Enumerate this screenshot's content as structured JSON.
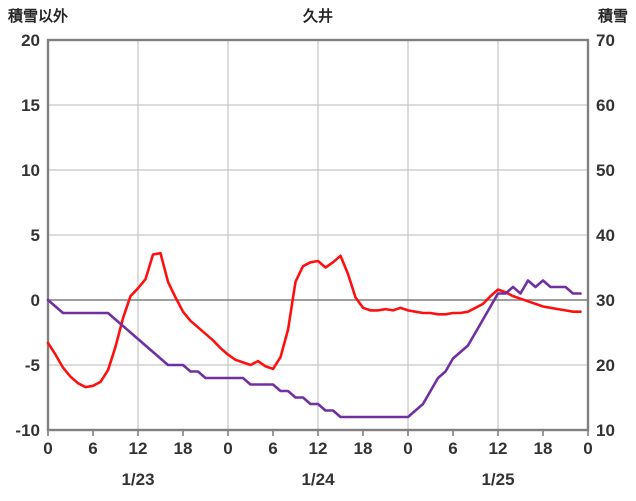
{
  "header": {
    "left_axis_title": "積雪以外",
    "chart_title": "久井",
    "right_axis_title": "積雪"
  },
  "chart_data": {
    "type": "line",
    "title": "久井",
    "legend": "none",
    "grid": true,
    "left_axis": {
      "label": "積雪以外",
      "min": -10,
      "max": 20,
      "tick_step": 5,
      "ticks": [
        20,
        15,
        10,
        5,
        0,
        -5,
        -10
      ]
    },
    "right_axis": {
      "label": "積雪",
      "min": 10,
      "max": 70,
      "tick_step": 10,
      "ticks": [
        70,
        60,
        50,
        40,
        30,
        20,
        10
      ]
    },
    "x_axis": {
      "hours_total": 72,
      "tick_interval_hours": 6,
      "gridline_interval_hours": 12,
      "tick_labels": [
        "0",
        "6",
        "12",
        "18",
        "0",
        "6",
        "12",
        "18",
        "0",
        "6",
        "12",
        "18",
        "0"
      ],
      "day_labels": [
        "1/23",
        "1/24",
        "1/25"
      ],
      "day_label_hours": [
        12,
        36,
        60
      ]
    },
    "series": [
      {
        "name": "red-line",
        "axis": "left",
        "color": "#FF1010",
        "values": [
          -3.3,
          -4.2,
          -5.2,
          -5.9,
          -6.4,
          -6.7,
          -6.6,
          -6.3,
          -5.4,
          -3.6,
          -1.4,
          0.3,
          0.9,
          1.6,
          3.5,
          3.6,
          1.4,
          0.2,
          -0.9,
          -1.6,
          -2.1,
          -2.6,
          -3.1,
          -3.7,
          -4.2,
          -4.6,
          -4.8,
          -5.0,
          -4.7,
          -5.1,
          -5.3,
          -4.4,
          -2.3,
          1.4,
          2.6,
          2.9,
          3.0,
          2.5,
          2.9,
          3.4,
          2.0,
          0.2,
          -0.6,
          -0.8,
          -0.8,
          -0.7,
          -0.8,
          -0.6,
          -0.8,
          -0.9,
          -1.0,
          -1.0,
          -1.1,
          -1.1,
          -1.0,
          -1.0,
          -0.9,
          -0.6,
          -0.3,
          0.3,
          0.8,
          0.6,
          0.3,
          0.1,
          -0.1,
          -0.3,
          -0.5,
          -0.6,
          -0.7,
          -0.8,
          -0.9,
          -0.9
        ]
      },
      {
        "name": "purple-line",
        "axis": "right",
        "color": "#7030A0",
        "values": [
          30,
          29,
          28,
          28,
          28,
          28,
          28,
          28,
          28,
          27,
          26,
          25,
          24,
          23,
          22,
          21,
          20,
          20,
          20,
          19,
          19,
          18,
          18,
          18,
          18,
          18,
          18,
          17,
          17,
          17,
          17,
          16,
          16,
          15,
          15,
          14,
          14,
          13,
          13,
          12,
          12,
          12,
          12,
          12,
          12,
          12,
          12,
          12,
          12,
          13,
          14,
          16,
          18,
          19,
          21,
          22,
          23,
          25,
          27,
          29,
          31,
          31,
          32,
          31,
          33,
          32,
          33,
          32,
          32,
          32,
          31,
          31
        ]
      }
    ],
    "colors": {
      "grid": "#C6C6C6",
      "zero_line": "#7F7F7F",
      "border": "#808080",
      "tick_text": "#333333"
    }
  }
}
